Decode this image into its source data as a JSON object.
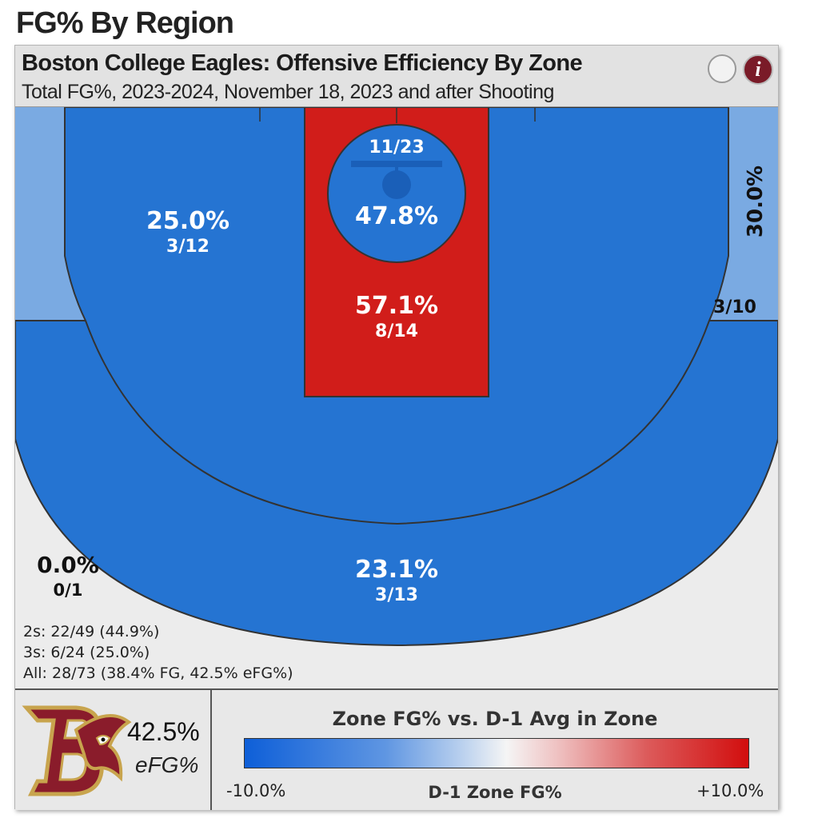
{
  "page": {
    "heading": "FG% By Region"
  },
  "header": {
    "title": "Boston College Eagles: Offensive Efficiency By Zone",
    "subtitle": "Total FG%, 2023-2024, November 18, 2023 and after Shooting",
    "info_label": "i"
  },
  "colors": {
    "zone_blue": "#2574d2",
    "zone_light_blue": "#7aaae2",
    "zone_red": "#d11d1a",
    "zone_none": "#ececec",
    "line": "#333333"
  },
  "chart_data": {
    "type": "heatmap",
    "title": "Boston College Eagles: Offensive Efficiency By Zone",
    "subtitle": "Total FG%, 2023-2024, November 18, 2023 and after Shooting",
    "zones": [
      {
        "zone": "rim",
        "pct": "47.8%",
        "made_att": "11/23",
        "made": 11,
        "attempts": 23,
        "color": "#2574d2"
      },
      {
        "zone": "paint",
        "pct": "57.1%",
        "made_att": "8/14",
        "made": 8,
        "attempts": 14,
        "color": "#d11d1a"
      },
      {
        "zone": "midrange",
        "pct": "25.0%",
        "made_att": "3/12",
        "made": 3,
        "attempts": 12,
        "color": "#2574d2"
      },
      {
        "zone": "corner-right",
        "pct": "30.0%",
        "made_att": "3/10",
        "made": 3,
        "attempts": 10,
        "color": "#7aaae2"
      },
      {
        "zone": "corner-left",
        "pct": "0.0%",
        "made_att": "0/1",
        "made": 0,
        "attempts": 1,
        "color": "#ececec"
      },
      {
        "zone": "above-break-three",
        "pct": "23.1%",
        "made_att": "3/13",
        "made": 3,
        "attempts": 13,
        "color": "#2574d2"
      }
    ],
    "totals": {
      "twos": "2s: 22/49 (44.9%)",
      "threes": "3s: 6/24 (25.0%)",
      "all": "All: 28/73 (38.4% FG, 42.5% eFG%)"
    },
    "legend": {
      "title": "Zone FG% vs. D-1 Avg in Zone",
      "min_label": "-10.0%",
      "mid_label": "D-1 Zone FG%",
      "max_label": "+10.0%",
      "min_color": "#0e5fd8",
      "mid_color": "#f5f5f5",
      "max_color": "#d20e0e"
    }
  },
  "team": {
    "logo_icon": "boston-college-eagle-logo",
    "efg_value": "42.5%",
    "efg_label": "eFG%"
  }
}
